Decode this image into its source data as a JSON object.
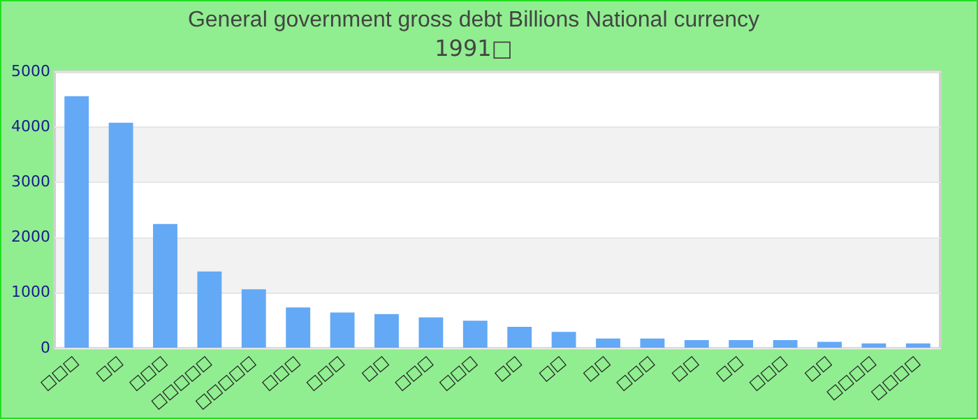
{
  "chart_data": {
    "type": "bar",
    "title": "General government gross debt Billions National currency",
    "subtitle": "1991□",
    "categories": [
      "□□□",
      "□□",
      "□□□",
      "□□□□□",
      "□□□□□",
      "□□□",
      "□□□",
      "□□",
      "□□□",
      "□□□",
      "□□",
      "□□",
      "□□",
      "□□□",
      "□□",
      "□□",
      "□□□",
      "□□",
      "□□□□",
      "□□□□"
    ],
    "values": [
      4560,
      4080,
      2250,
      1390,
      1070,
      740,
      650,
      620,
      560,
      500,
      390,
      300,
      180,
      180,
      150,
      150,
      150,
      120,
      90,
      90
    ],
    "color": "#63a9f5",
    "ylim": [
      0,
      5000
    ],
    "yticks": [
      0,
      1000,
      2000,
      3000,
      4000,
      5000
    ],
    "grid": "y",
    "legend": false
  }
}
